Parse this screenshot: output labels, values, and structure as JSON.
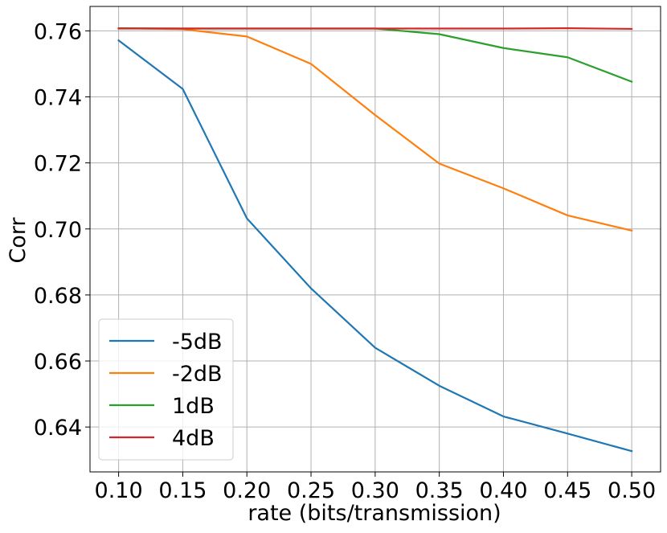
{
  "chart_data": {
    "type": "line",
    "title": "",
    "xlabel": "rate (bits/transmission)",
    "ylabel": "Corr",
    "x": [
      0.1,
      0.15,
      0.2,
      0.25,
      0.3,
      0.35,
      0.4,
      0.45,
      0.5
    ],
    "x_tick_labels": [
      "0.10",
      "0.15",
      "0.20",
      "0.25",
      "0.30",
      "0.35",
      "0.40",
      "0.45",
      "0.50"
    ],
    "y_tick_values": [
      0.64,
      0.66,
      0.68,
      0.7,
      0.72,
      0.74,
      0.76
    ],
    "y_tick_labels": [
      "0.64",
      "0.66",
      "0.68",
      "0.70",
      "0.72",
      "0.74",
      "0.76"
    ],
    "xlim": [
      0.0777,
      0.5225
    ],
    "ylim": [
      0.6264,
      0.7674
    ],
    "grid": true,
    "legend_position": "lower-left",
    "series": [
      {
        "name": "-5dB",
        "color": "#1f77b4",
        "values": [
          0.7571,
          0.7424,
          0.7032,
          0.682,
          0.664,
          0.6525,
          0.6432,
          0.638,
          0.6327
        ]
      },
      {
        "name": "-2dB",
        "color": "#ff7f0e",
        "values": [
          0.7608,
          0.7605,
          0.7583,
          0.75,
          0.7345,
          0.7198,
          0.7123,
          0.7041,
          0.6995
        ]
      },
      {
        "name": "1dB",
        "color": "#2ca02c",
        "values": [
          0.7608,
          0.7607,
          0.7607,
          0.7607,
          0.7607,
          0.759,
          0.7548,
          0.752,
          0.7446
        ]
      },
      {
        "name": "4dB",
        "color": "#d62728",
        "values": [
          0.7607,
          0.7607,
          0.7607,
          0.7607,
          0.7607,
          0.7607,
          0.7607,
          0.7608,
          0.7606
        ]
      }
    ]
  }
}
